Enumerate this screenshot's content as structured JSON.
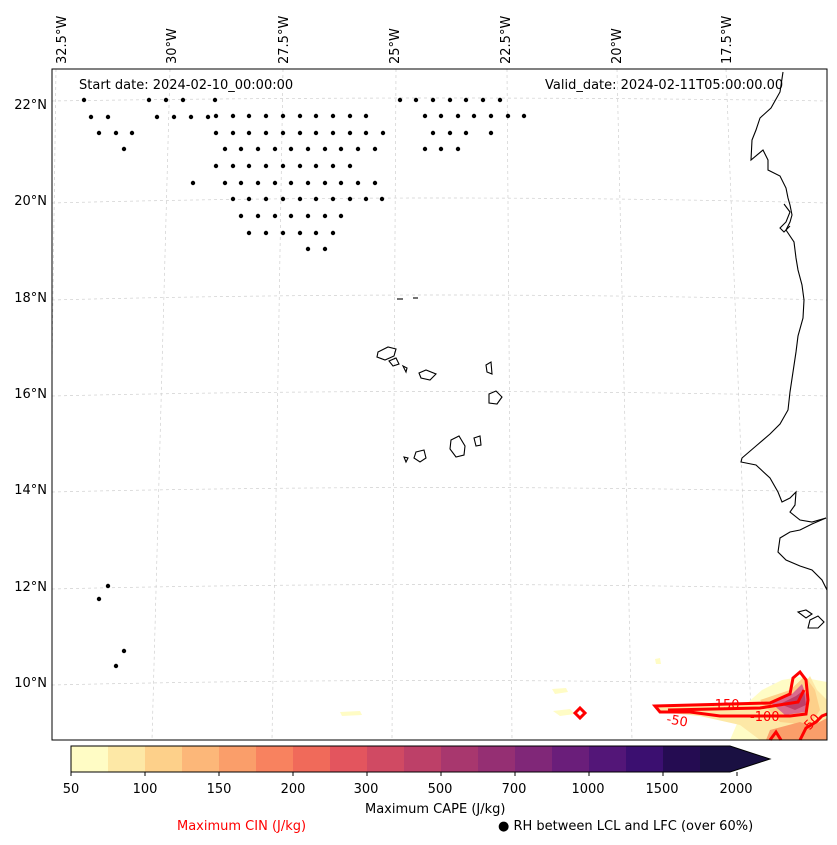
{
  "map": {
    "start_date": "Start date: 2024-02-10_00:00:00",
    "valid_date": "Valid_date: 2024-02-11T05:00:00.00",
    "lon_labels": [
      "32.5°W",
      "30°W",
      "27.5°W",
      "25°W",
      "22.5°W",
      "20°W",
      "17.5°W"
    ],
    "lat_labels": [
      "22°N",
      "20°N",
      "18°N",
      "16°N",
      "14°N",
      "12°N",
      "10°N"
    ],
    "cin_labels": [
      "-150",
      "-100",
      "-50",
      "-50"
    ]
  },
  "legend": {
    "cape_levels": [
      "50",
      "100",
      "150",
      "200",
      "300",
      "500",
      "700",
      "1000",
      "1500",
      "2000"
    ],
    "cape_label": "Maximum CAPE (J/kg)",
    "cin_label": "Maximum CIN (J/kg)",
    "rh_label": "RH between LCL and LFC (over 60%)",
    "colors": [
      "#fffcc5",
      "#fde8a6",
      "#fdd08a",
      "#fcb779",
      "#fa9e6a",
      "#f8825f",
      "#f06a5a",
      "#e3555e",
      "#d04a63",
      "#bd4068",
      "#a8376e",
      "#952f73",
      "#802778",
      "#6a1e7a",
      "#531678",
      "#3b0f70",
      "#250c52",
      "#1a1042"
    ],
    "cin_color": "#ff0000"
  }
}
